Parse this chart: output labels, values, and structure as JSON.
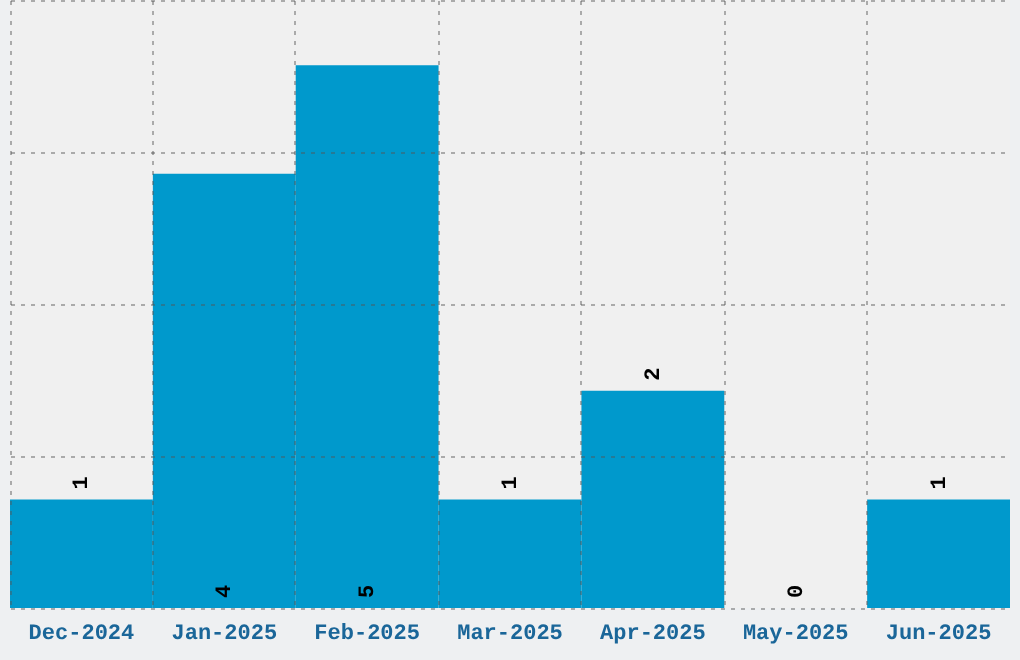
{
  "chart_data": {
    "type": "bar",
    "categories": [
      "Dec-2024",
      "Jan-2025",
      "Feb-2025",
      "Mar-2025",
      "Apr-2025",
      "May-2025",
      "Jun-2025"
    ],
    "values": [
      1,
      4,
      5,
      1,
      2,
      0,
      1
    ],
    "color": "#0099cc",
    "ylim": [
      0,
      5.6
    ],
    "yticks": [
      {
        "value": 0,
        "label": null
      },
      {
        "value": 1.4,
        "label": null
      },
      {
        "value": 2.8,
        "label": null
      },
      {
        "value": 4.2,
        "label": null
      },
      {
        "value": 5.6,
        "label": null
      }
    ],
    "tick_labels": "x",
    "grid": true,
    "data_labels": true
  }
}
